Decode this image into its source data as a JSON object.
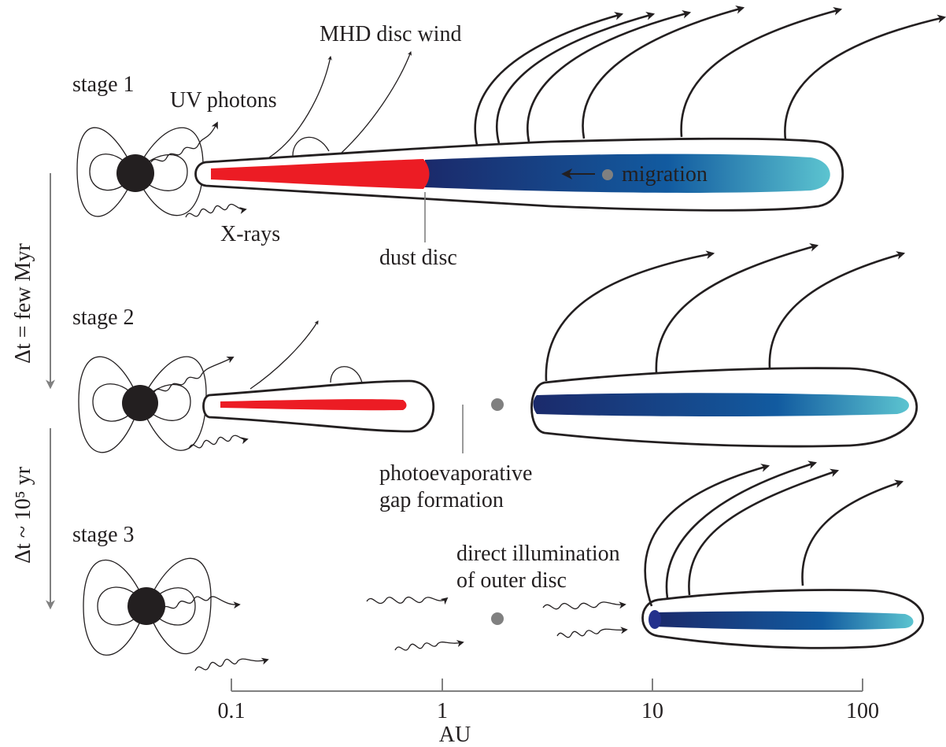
{
  "stages": [
    {
      "label": "stage 1"
    },
    {
      "label": "stage 2"
    },
    {
      "label": "stage 3"
    }
  ],
  "time_intervals": [
    {
      "label": "Δt = few Myr"
    },
    {
      "label": "Δt ~ 10⁵ yr"
    }
  ],
  "annotations": {
    "mhd_wind": "MHD disc wind",
    "uv_photons": "UV photons",
    "xrays": "X-rays",
    "migration": "migration",
    "dust_disc": "dust disc",
    "gap_line1": "photoevaporative",
    "gap_line2": "gap formation",
    "illum_line1": "direct illumination",
    "illum_line2": "of outer disc"
  },
  "axis": {
    "label": "AU",
    "ticks": [
      "0.1",
      "1",
      "10",
      "100"
    ]
  },
  "colors": {
    "dust": "#ec1c24",
    "gas_dark": "#1b2a6b",
    "gas_mid": "#125ba0",
    "gas_light": "#5cc4d0",
    "star": "#231f20",
    "planet": "#808080",
    "axis": "#808080"
  }
}
